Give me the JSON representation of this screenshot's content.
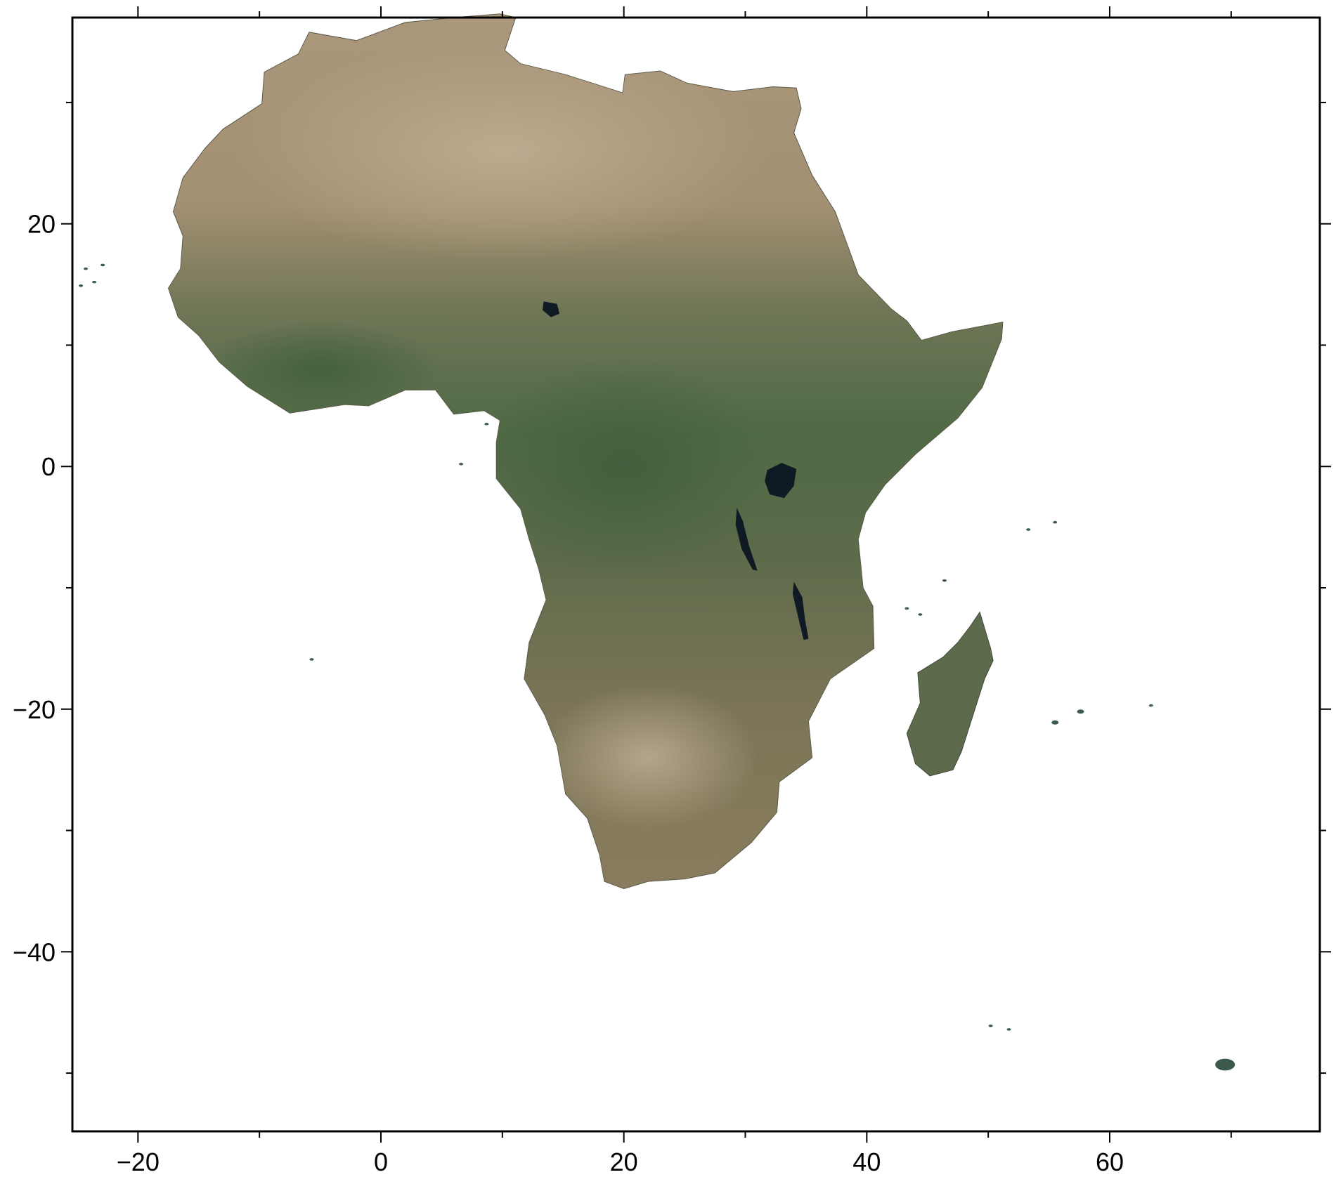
{
  "map": {
    "projection": "Cartesian longitude/latitude",
    "region": "Africa",
    "x_range": [
      -25.4,
      77.3
    ],
    "y_range": [
      -54.8,
      37.0
    ],
    "frame_style": "plain",
    "x_axis": {
      "label": "",
      "ticks": [
        {
          "value": -20,
          "label": "−20"
        },
        {
          "value": 0,
          "label": "0"
        },
        {
          "value": 20,
          "label": "20"
        },
        {
          "value": 40,
          "label": "40"
        },
        {
          "value": 60,
          "label": "60"
        }
      ],
      "minor_ticks": [
        -10,
        10,
        30,
        50,
        70
      ]
    },
    "y_axis": {
      "label": "",
      "ticks": [
        {
          "value": 20,
          "label": "20"
        },
        {
          "value": 0,
          "label": "0"
        },
        {
          "value": -20,
          "label": "−20"
        },
        {
          "value": -40,
          "label": "−40"
        }
      ],
      "minor_ticks": [
        30,
        10,
        -10,
        -30,
        -50
      ]
    },
    "colors": {
      "frame": "#000000",
      "desert": "#a89478",
      "desert_light": "#bfae92",
      "savanna": "#7b7a5c",
      "forest": "#4e6a44",
      "forest_dark": "#3f5a3a",
      "water": "#0f1a24",
      "background": "#ffffff"
    }
  },
  "chart_data": {
    "type": "map",
    "title": "",
    "xlabel": "",
    "ylabel": "",
    "xlim": [
      -25.4,
      77.3
    ],
    "ylim": [
      -54.8,
      37.0
    ],
    "grid": false,
    "features": [
      {
        "name": "Africa",
        "kind": "continent"
      },
      {
        "name": "Madagascar",
        "kind": "island"
      },
      {
        "name": "Lake Victoria",
        "kind": "lake"
      },
      {
        "name": "Lake Tanganyika",
        "kind": "lake"
      },
      {
        "name": "Lake Malawi",
        "kind": "lake"
      },
      {
        "name": "Lake Chad",
        "kind": "lake"
      },
      {
        "name": "Cape Verde",
        "kind": "islands"
      },
      {
        "name": "Mascarene Islands",
        "kind": "islands"
      },
      {
        "name": "Kerguelen Islands",
        "kind": "islands"
      },
      {
        "name": "Crozet Islands",
        "kind": "islands"
      },
      {
        "name": "Seychelles",
        "kind": "islands"
      },
      {
        "name": "Comoros",
        "kind": "islands"
      },
      {
        "name": "Saint Helena",
        "kind": "island"
      },
      {
        "name": "Bioko / Sao Tome",
        "kind": "islands"
      }
    ]
  }
}
